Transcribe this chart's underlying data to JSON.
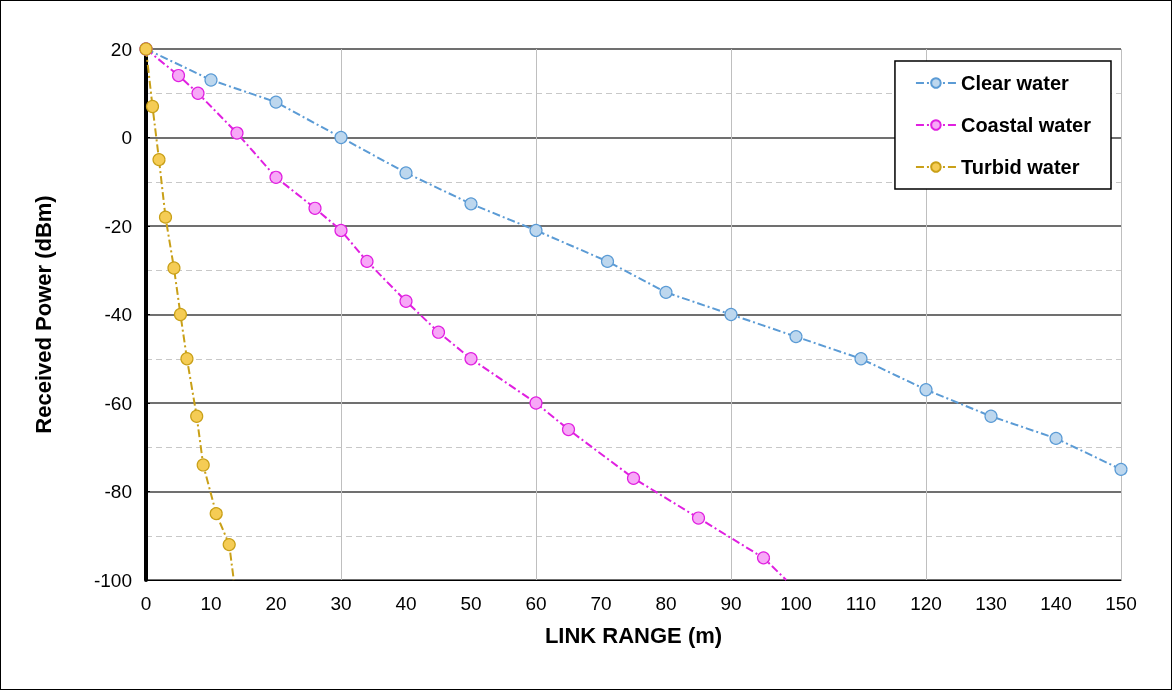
{
  "chart_data": {
    "type": "line",
    "xlabel": "LINK RANGE (m)",
    "ylabel": "Received Power (dBm)",
    "xlim": [
      0,
      150
    ],
    "xticks": [
      0,
      10,
      20,
      30,
      40,
      50,
      60,
      70,
      80,
      90,
      100,
      110,
      120,
      130,
      140,
      150
    ],
    "ylim": [
      -100,
      20
    ],
    "yticks": [
      -100,
      -80,
      -60,
      -40,
      -20,
      0,
      20
    ],
    "grid": true,
    "legend": "top right",
    "marker": "circle",
    "line_style": "dashed",
    "series": [
      {
        "name": "Clear water",
        "color": "#5b9bd5",
        "x": [
          0,
          10,
          20,
          30,
          40,
          50,
          60,
          71,
          80,
          90,
          100,
          110,
          120,
          130,
          140,
          150
        ],
        "values": [
          20,
          13,
          8,
          0,
          -8,
          -15,
          -21,
          -28,
          -35,
          -40,
          -45,
          -50,
          -57,
          -63,
          -68,
          -75
        ]
      },
      {
        "name": "Coastal water",
        "color": "#e020e0",
        "x": [
          0,
          5,
          8,
          14,
          20,
          26,
          30,
          34,
          40,
          45,
          50,
          60,
          65,
          75,
          85,
          95,
          98.5
        ],
        "values": [
          20,
          14,
          10,
          1,
          -9,
          -16,
          -21,
          -28,
          -37,
          -44,
          -50,
          -60,
          -66,
          -77,
          -86,
          -95,
          -100
        ]
      },
      {
        "name": "Turbid water",
        "color": "#c9a018",
        "x": [
          0,
          1,
          2,
          3,
          4.3,
          5.3,
          6.3,
          7.8,
          8.8,
          10.8,
          12.8,
          13.5
        ],
        "values": [
          20,
          7,
          -5,
          -18,
          -29.5,
          -40,
          -50,
          -63,
          -74,
          -85,
          -92,
          -100
        ]
      }
    ]
  }
}
